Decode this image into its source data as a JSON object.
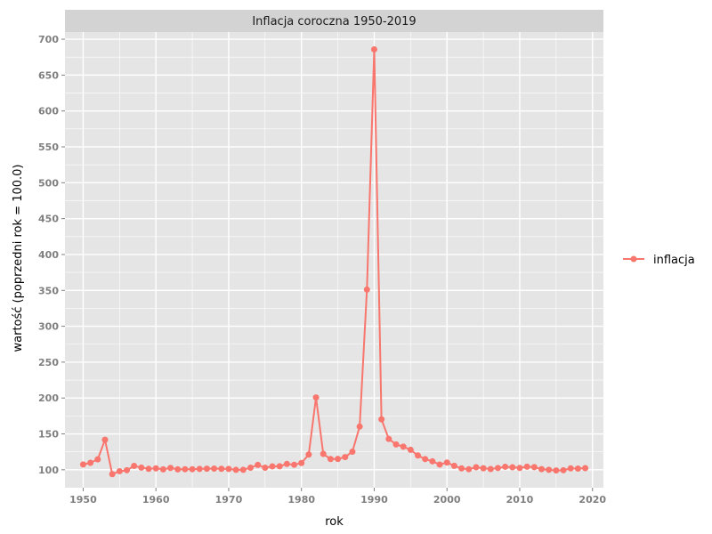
{
  "chart_data": {
    "type": "line",
    "title": "Inflacja coroczna 1950-2019",
    "xlabel": "rok",
    "ylabel": "wartość (poprzedni rok = 100.0)",
    "xlim": [
      1947.5,
      2021.5
    ],
    "ylim": [
      75,
      710
    ],
    "x_ticks": [
      1950,
      1960,
      1970,
      1980,
      1990,
      2000,
      2010,
      2020
    ],
    "y_ticks": [
      100,
      150,
      200,
      250,
      300,
      350,
      400,
      450,
      500,
      550,
      600,
      650,
      700
    ],
    "grid": true,
    "legend_position": "right",
    "colors": {
      "series": "#f8766d",
      "panel": "#e5e5e5",
      "grid": "#ffffff",
      "strip": "#d3d3d3"
    },
    "series": [
      {
        "name": "inflacja",
        "x": [
          1950,
          1951,
          1952,
          1953,
          1954,
          1955,
          1956,
          1957,
          1958,
          1959,
          1960,
          1961,
          1962,
          1963,
          1964,
          1965,
          1966,
          1967,
          1968,
          1969,
          1970,
          1971,
          1972,
          1973,
          1974,
          1975,
          1976,
          1977,
          1978,
          1979,
          1980,
          1981,
          1982,
          1983,
          1984,
          1985,
          1986,
          1987,
          1988,
          1989,
          1990,
          1991,
          1992,
          1993,
          1994,
          1995,
          1996,
          1997,
          1998,
          1999,
          2000,
          2001,
          2002,
          2003,
          2004,
          2005,
          2006,
          2007,
          2008,
          2009,
          2010,
          2011,
          2012,
          2013,
          2014,
          2015,
          2016,
          2017,
          2018,
          2019
        ],
        "y": [
          107.4,
          109.7,
          114.5,
          141.8,
          93.9,
          98.0,
          99.4,
          105.4,
          103.0,
          101.3,
          102.0,
          100.6,
          102.6,
          100.6,
          100.8,
          100.8,
          101.2,
          101.5,
          101.6,
          101.4,
          101.2,
          99.9,
          100.0,
          102.9,
          106.8,
          102.9,
          104.7,
          104.9,
          108.1,
          107.0,
          109.4,
          121.2,
          200.8,
          122.1,
          115.0,
          115.1,
          117.7,
          125.2,
          160.2,
          351.1,
          685.8,
          170.3,
          143.0,
          135.3,
          132.2,
          127.8,
          119.9,
          114.9,
          111.8,
          107.3,
          110.1,
          105.5,
          101.9,
          100.8,
          103.5,
          102.1,
          101.0,
          102.5,
          104.2,
          103.5,
          102.6,
          104.3,
          103.7,
          100.9,
          100.0,
          99.1,
          99.4,
          102.0,
          101.6,
          102.3
        ]
      }
    ]
  }
}
